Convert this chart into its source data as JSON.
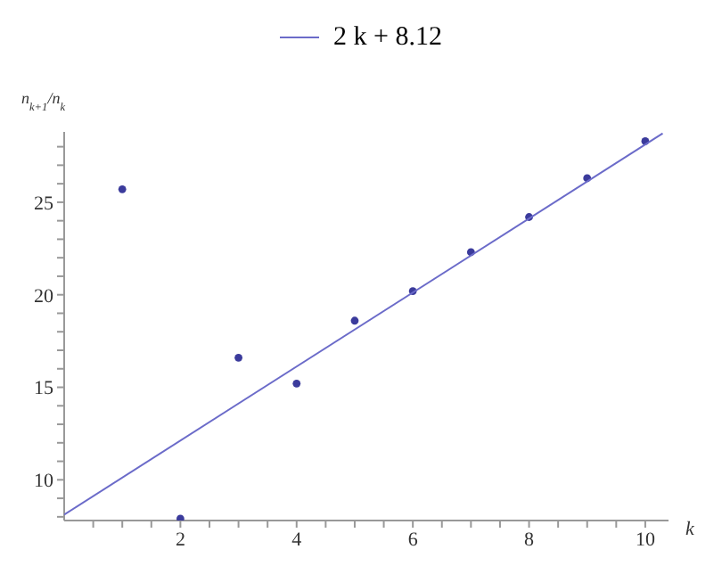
{
  "chart_data": {
    "type": "scatter",
    "xlabel": "k",
    "ylabel": "n$_{k+1}$/n$_{k}$",
    "x": [
      1,
      2,
      3,
      4,
      5,
      6,
      7,
      8,
      9,
      10
    ],
    "series": [
      {
        "color": "#3b3b9c",
        "values": [
          25.7,
          7.9,
          16.6,
          15.2,
          18.6,
          20.2,
          22.3,
          24.2,
          26.3,
          28.3
        ],
        "marker": "circle"
      },
      {
        "type": "line",
        "name": "2 k + 8.12",
        "color": "#6b6bc9",
        "x": [
          0,
          10.3
        ],
        "values": [
          8.12,
          28.72
        ],
        "marker": "none"
      }
    ],
    "xlim": [
      0,
      10.4
    ],
    "ylim": [
      7.8,
      28.8
    ],
    "xticks": [
      {
        "value": 0.5,
        "label": null
      },
      {
        "value": 1,
        "label": null
      },
      {
        "value": 1.5,
        "label": null
      },
      2,
      {
        "value": 2.5,
        "label": null
      },
      {
        "value": 3,
        "label": null
      },
      {
        "value": 3.5,
        "label": null
      },
      4,
      {
        "value": 4.5,
        "label": null
      },
      {
        "value": 5,
        "label": null
      },
      {
        "value": 5.5,
        "label": null
      },
      6,
      {
        "value": 6.5,
        "label": null
      },
      {
        "value": 7,
        "label": null
      },
      {
        "value": 7.5,
        "label": null
      },
      8,
      {
        "value": 8.5,
        "label": null
      },
      {
        "value": 9,
        "label": null
      },
      {
        "value": 9.5,
        "label": null
      },
      10
    ],
    "yticks": [
      {
        "value": 8,
        "label": null
      },
      {
        "value": 9,
        "label": null
      },
      10,
      {
        "value": 11,
        "label": null
      },
      {
        "value": 12,
        "label": null
      },
      {
        "value": 13,
        "label": null
      },
      {
        "value": 14,
        "label": null
      },
      15,
      {
        "value": 16,
        "label": null
      },
      {
        "value": 17,
        "label": null
      },
      {
        "value": 18,
        "label": null
      },
      {
        "value": 19,
        "label": null
      },
      20,
      {
        "value": 21,
        "label": null
      },
      {
        "value": 22,
        "label": null
      },
      {
        "value": 23,
        "label": null
      },
      {
        "value": 24,
        "label": null
      },
      25,
      {
        "value": 26,
        "label": null
      },
      {
        "value": 27,
        "label": null
      },
      {
        "value": 28,
        "label": null
      }
    ],
    "grid": false,
    "legend": "top"
  }
}
